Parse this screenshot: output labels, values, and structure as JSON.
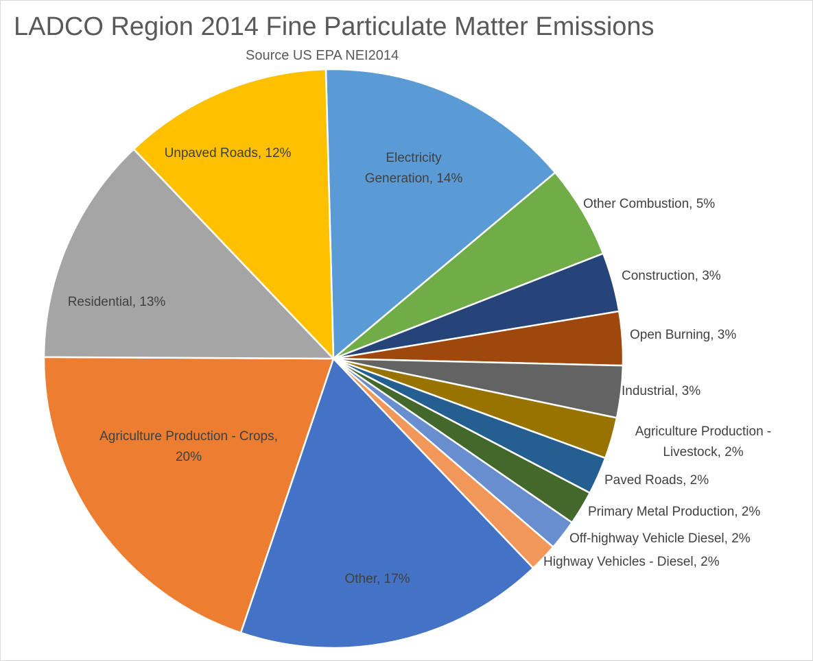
{
  "chart_data": {
    "type": "pie",
    "title": "LADCO Region 2014 Fine Particulate Matter Emissions",
    "subtitle": "Source US EPA NEI2014",
    "slices": [
      {
        "label": "Electricity Generation",
        "value": 14.3,
        "display": "14%",
        "color": "#5b9bd5",
        "label_lines": [
          "Electricity",
          "Generation, 14%"
        ]
      },
      {
        "label": "Other Combustion",
        "value": 5.2,
        "display": "5%",
        "color": "#70ad47",
        "label_lines": [
          "Other Combustion, 5%"
        ]
      },
      {
        "label": "Construction",
        "value": 3.3,
        "display": "3%",
        "color": "#264478",
        "label_lines": [
          "Construction, 3%"
        ]
      },
      {
        "label": "Open Burning",
        "value": 3.0,
        "display": "3%",
        "color": "#9e480e",
        "label_lines": [
          "Open Burning, 3%"
        ]
      },
      {
        "label": "Industrial",
        "value": 2.9,
        "display": "3%",
        "color": "#636363",
        "label_lines": [
          "Industrial, 3%"
        ]
      },
      {
        "label": "Agriculture Production - Livestock",
        "value": 2.3,
        "display": "2%",
        "color": "#997300",
        "label_lines": [
          "Agriculture Production -",
          "Livestock, 2%"
        ]
      },
      {
        "label": "Paved Roads",
        "value": 2.1,
        "display": "2%",
        "color": "#255e91",
        "label_lines": [
          "Paved Roads, 2%"
        ]
      },
      {
        "label": "Primary Metal Production",
        "value": 1.9,
        "display": "2%",
        "color": "#43682b",
        "label_lines": [
          "Primary Metal Production, 2%"
        ]
      },
      {
        "label": "Off-highway Vehicle Diesel",
        "value": 1.7,
        "display": "2%",
        "color": "#698ed0",
        "label_lines": [
          "Off-highway Vehicle Diesel, 2%"
        ]
      },
      {
        "label": "Highway Vehicles - Diesel",
        "value": 1.6,
        "display": "2%",
        "color": "#f1975a",
        "label_lines": [
          "Highway Vehicles - Diesel, 2%"
        ]
      },
      {
        "label": "Other",
        "value": 17.3,
        "display": "17%",
        "color": "#4472c4",
        "label_lines": [
          "Other, 17%"
        ]
      },
      {
        "label": "Agriculture Production - Crops",
        "value": 19.9,
        "display": "20%",
        "color": "#ed7d31",
        "label_lines": [
          "Agriculture Production - Crops,",
          "20%"
        ]
      },
      {
        "label": "Residential",
        "value": 12.8,
        "display": "13%",
        "color": "#a5a5a5",
        "label_lines": [
          "Residential, 13%"
        ]
      },
      {
        "label": "Unpaved Roads",
        "value": 11.7,
        "display": "12%",
        "color": "#ffc000",
        "label_lines": [
          "Unpaved Roads, 12%"
        ]
      }
    ],
    "start_angle_deg": -1.5,
    "direction": "clockwise",
    "legend": "none",
    "data_labels": "category name and percentage"
  }
}
